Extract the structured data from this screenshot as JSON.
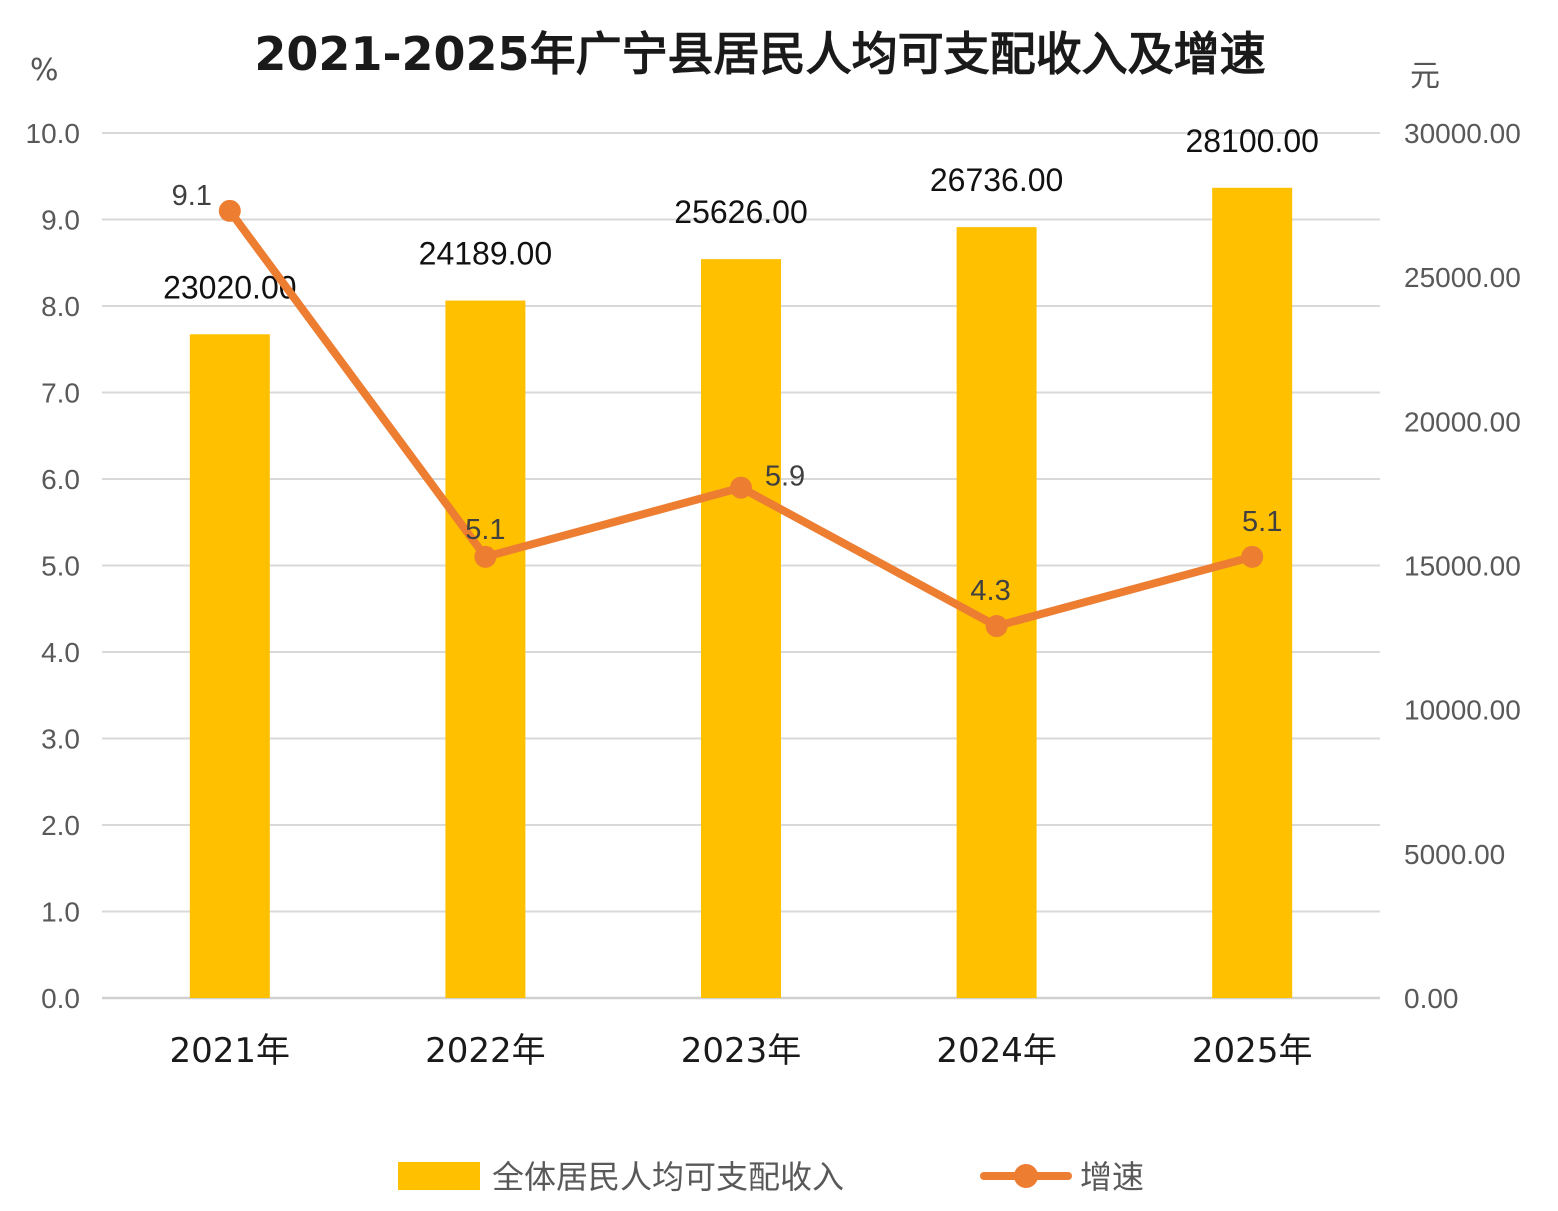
{
  "chart_data": {
    "type": "bar+line",
    "title": "2021-2025年广宁县居民人均可支配收入及增速",
    "categories": [
      "2021年",
      "2022年",
      "2023年",
      "2024年",
      "2025年"
    ],
    "y_left": {
      "unit": "%",
      "ylim": [
        0,
        10
      ],
      "ticks": [
        "0.0",
        "1.0",
        "2.0",
        "3.0",
        "4.0",
        "5.0",
        "6.0",
        "7.0",
        "8.0",
        "9.0",
        "10.0"
      ]
    },
    "y_right": {
      "unit": "元",
      "ylim": [
        0,
        30000
      ],
      "ticks": [
        "0.00",
        "5000.00",
        "10000.00",
        "15000.00",
        "20000.00",
        "25000.00",
        "30000.00"
      ]
    },
    "series": [
      {
        "name": "全体居民人均可支配收入",
        "type": "bar",
        "axis": "right",
        "color": "#FFC000",
        "values": [
          23020,
          24189,
          25626,
          26736,
          28100
        ],
        "labels": [
          "23020.00",
          "24189.00",
          "25626.00",
          "26736.00",
          "28100.00"
        ]
      },
      {
        "name": "增速",
        "type": "line",
        "axis": "left",
        "color": "#ED7D31",
        "values": [
          9.1,
          5.1,
          5.9,
          4.3,
          5.1
        ],
        "labels": [
          "9.1",
          "5.1",
          "5.9",
          "4.3",
          "5.1"
        ]
      }
    ],
    "grid": true,
    "legend_position": "bottom"
  }
}
